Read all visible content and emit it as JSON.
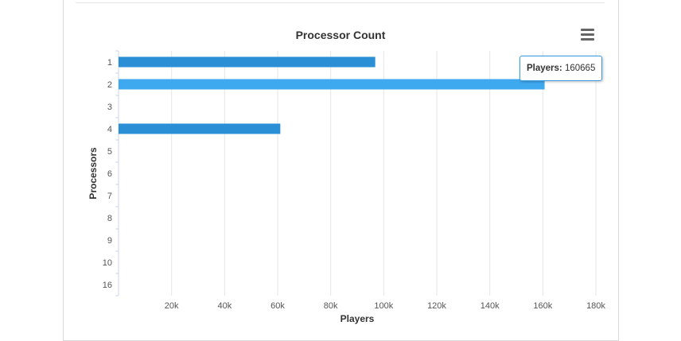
{
  "chart_data": {
    "type": "bar",
    "orientation": "horizontal",
    "title": "Processor Count",
    "xlabel": "Players",
    "ylabel": "Processors",
    "categories": [
      "1",
      "2",
      "3",
      "4",
      "5",
      "6",
      "7",
      "8",
      "9",
      "10",
      "16"
    ],
    "series": [
      {
        "name": "Players",
        "values": [
          96800,
          160665,
          0,
          61000,
          0,
          0,
          0,
          0,
          0,
          0,
          0
        ]
      }
    ],
    "xlim": [
      0,
      180000
    ],
    "xticks": [
      20000,
      40000,
      60000,
      80000,
      100000,
      120000,
      140000,
      160000,
      180000
    ],
    "xtick_labels": [
      "20k",
      "40k",
      "60k",
      "80k",
      "100k",
      "120k",
      "140k",
      "160k",
      "180k"
    ],
    "grid": true,
    "highlighted_category": "2",
    "bar_color": "#2b8fd6",
    "highlight_color": "#3fa9ef"
  },
  "tooltip": {
    "series_label": "Players:",
    "value": "160665"
  },
  "menu_icon": "hamburger-menu-icon"
}
